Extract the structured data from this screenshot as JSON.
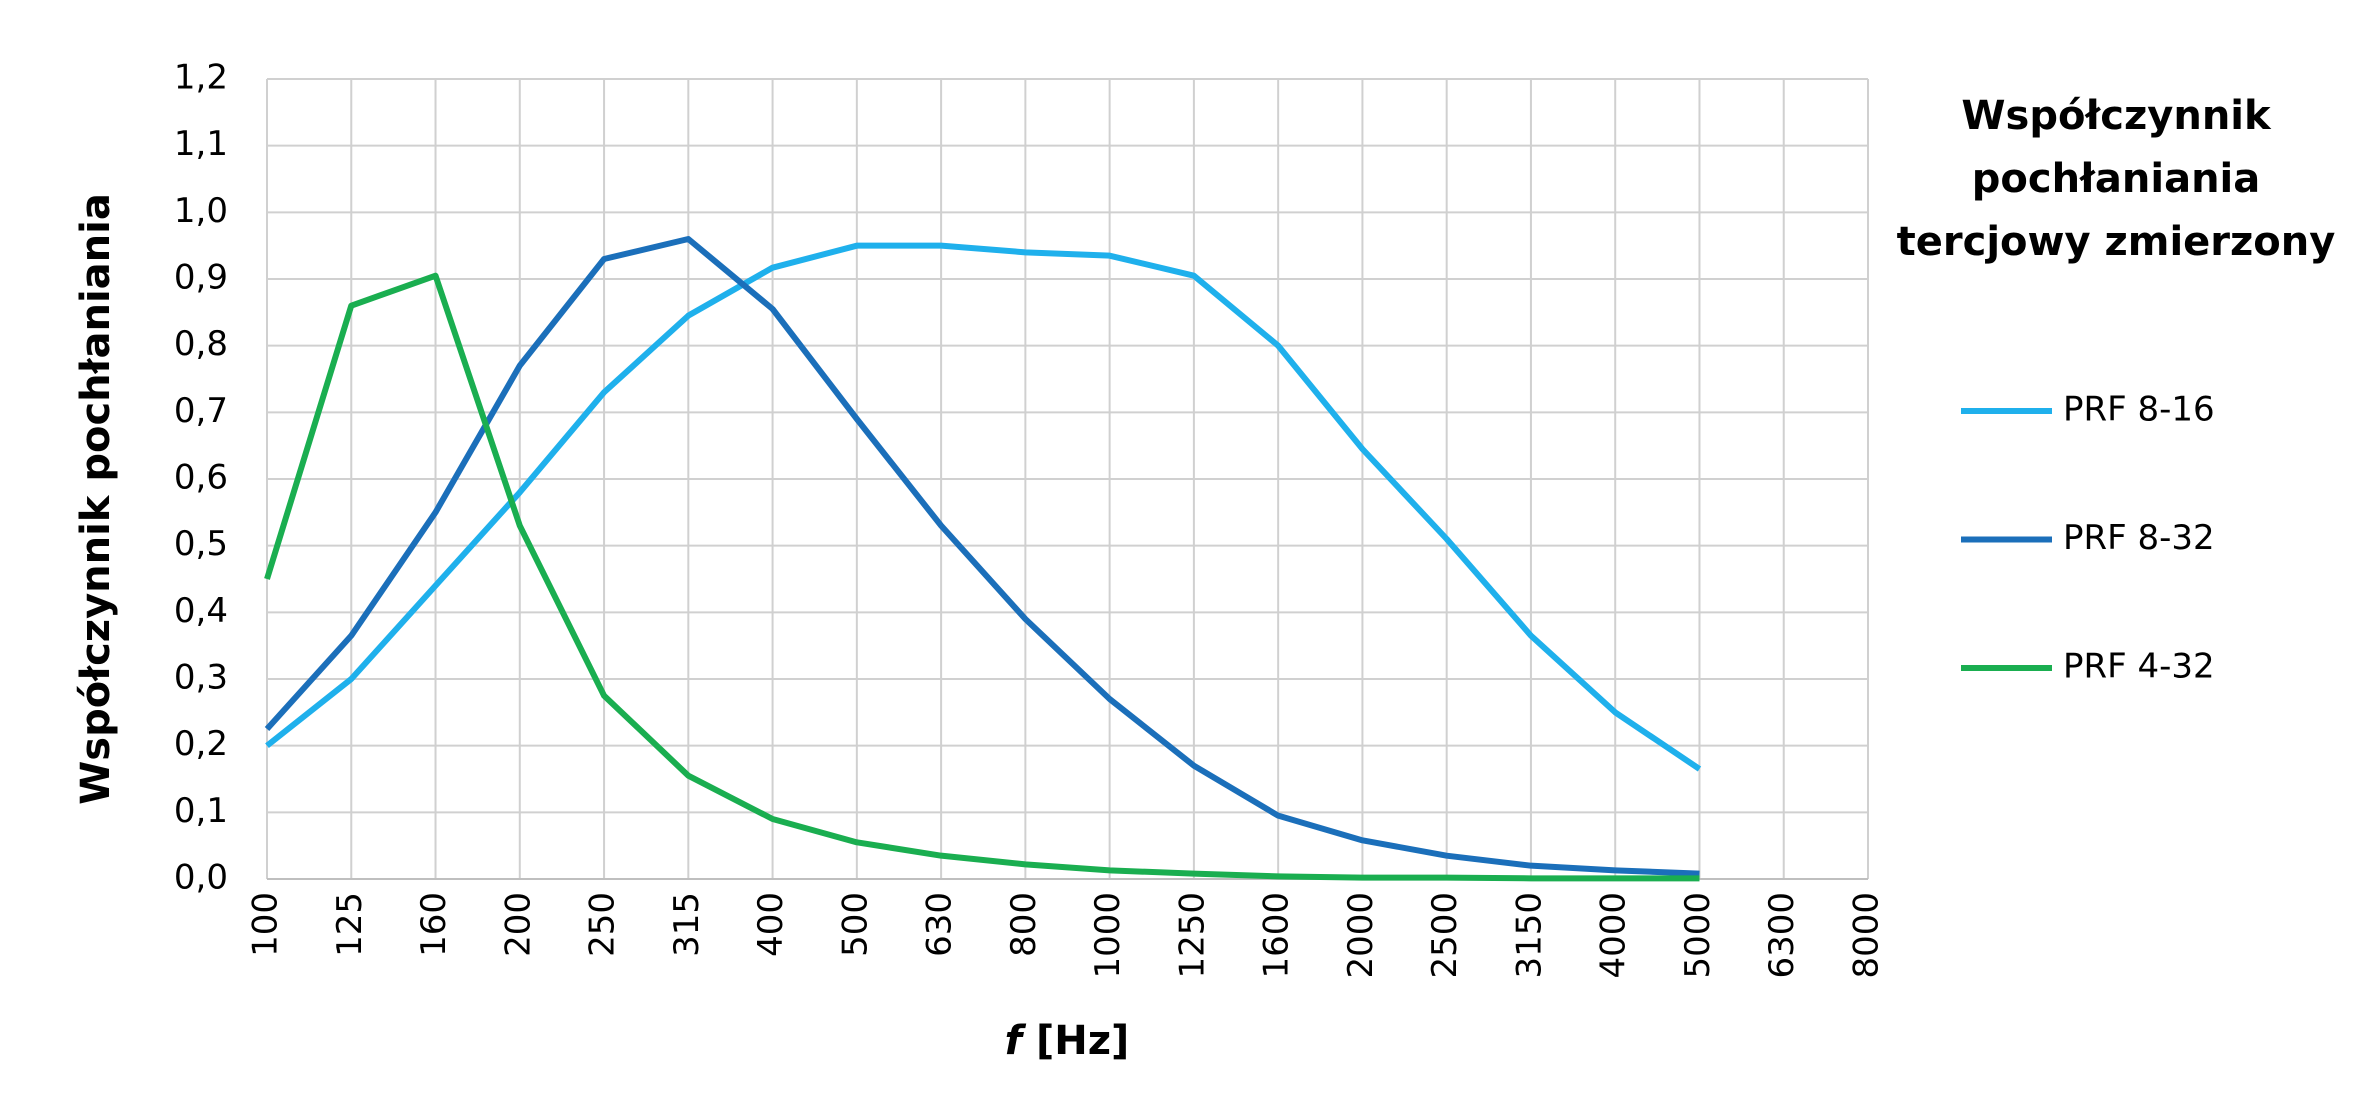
{
  "chart_data": {
    "type": "line",
    "y_label": "Współczynnik pochłaniania",
    "x_label": {
      "var": "f",
      "unit": "[Hz]"
    },
    "legend_title": [
      "Współczynnik",
      "pochłaniania",
      "tercjowy zmierzony"
    ],
    "legend": "right",
    "grid": true,
    "categories": [
      "100",
      "125",
      "160",
      "200",
      "250",
      "315",
      "400",
      "500",
      "630",
      "800",
      "1000",
      "1250",
      "1600",
      "2000",
      "2500",
      "3150",
      "4000",
      "5000",
      "6300",
      "8000"
    ],
    "ylim": [
      0,
      1.2
    ],
    "yticks": [
      {
        "value": 0,
        "label": "0,0"
      },
      {
        "value": 0.1,
        "label": "0,1"
      },
      {
        "value": 0.2,
        "label": "0,2"
      },
      {
        "value": 0.3,
        "label": "0,3"
      },
      {
        "value": 0.4,
        "label": "0,4"
      },
      {
        "value": 0.5,
        "label": "0,5"
      },
      {
        "value": 0.6,
        "label": "0,6"
      },
      {
        "value": 0.7,
        "label": "0,7"
      },
      {
        "value": 0.8,
        "label": "0,8"
      },
      {
        "value": 0.9,
        "label": "0,9"
      },
      {
        "value": 1.0,
        "label": "1,0"
      },
      {
        "value": 1.1,
        "label": "1,1"
      },
      {
        "value": 1.2,
        "label": "1,2"
      }
    ],
    "series": [
      {
        "name": "PRF 8-16",
        "color": "#1fb0ec",
        "values": [
          0.2,
          0.3,
          0.44,
          0.58,
          0.73,
          0.845,
          0.917,
          0.95,
          0.95,
          0.94,
          0.935,
          0.905,
          0.8,
          0.645,
          0.51,
          0.365,
          0.25,
          0.165,
          null,
          null
        ]
      },
      {
        "name": "PRF 8-32",
        "color": "#1b6fba",
        "values": [
          0.225,
          0.365,
          0.55,
          0.77,
          0.93,
          0.96,
          0.855,
          0.69,
          0.53,
          0.39,
          0.27,
          0.17,
          0.095,
          0.058,
          0.035,
          0.02,
          0.013,
          0.008,
          null,
          null
        ]
      },
      {
        "name": "PRF 4-32",
        "color": "#1aae50",
        "values": [
          0.45,
          0.86,
          0.905,
          0.53,
          0.275,
          0.155,
          0.09,
          0.055,
          0.035,
          0.022,
          0.013,
          0.008,
          0.004,
          0.002,
          0.002,
          0.001,
          0.001,
          0.001,
          null,
          null
        ]
      }
    ]
  }
}
